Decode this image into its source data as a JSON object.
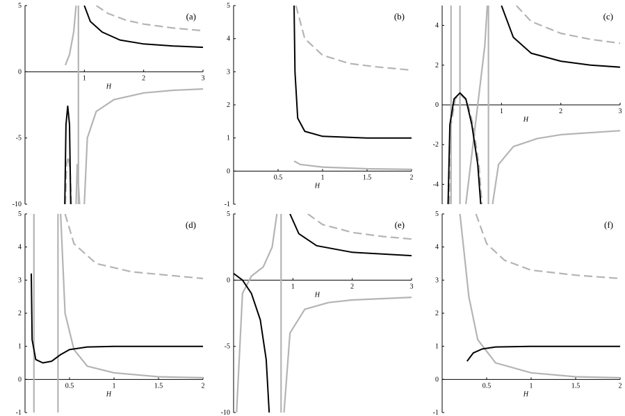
{
  "chart_data": [
    {
      "type": "line",
      "label": "(a)",
      "xlabel": "H",
      "xlim": [
        0,
        3
      ],
      "ylim": [
        -10,
        5
      ],
      "xticks": [
        1,
        2,
        3
      ],
      "yticks": [
        5,
        0,
        -5,
        -10
      ],
      "series": [
        {
          "color": "#b4b4b4",
          "dash": true,
          "x": [
            1.2,
            1.4,
            1.7,
            2,
            2.5,
            3
          ],
          "values": [
            5,
            4.4,
            3.9,
            3.6,
            3.3,
            3.1
          ]
        },
        {
          "color": "#000000",
          "dash": false,
          "x": [
            1.0,
            1.1,
            1.3,
            1.6,
            2,
            2.5,
            3
          ],
          "values": [
            5,
            3.8,
            3.0,
            2.4,
            2.1,
            1.95,
            1.85
          ]
        },
        {
          "color": "#b4b4b4",
          "dash": false,
          "x": [
            0.68,
            0.75,
            0.82,
            0.86
          ],
          "values": [
            0.5,
            1.3,
            3,
            5
          ]
        },
        {
          "color": "#b4b4b4",
          "dash": false,
          "x": [
            0.9,
            0.9
          ],
          "values": [
            5,
            -10
          ]
        },
        {
          "color": "#b4b4b4",
          "dash": false,
          "x": [
            1.0,
            1.05,
            1.2,
            1.5,
            2,
            2.5,
            3
          ],
          "values": [
            -10,
            -5,
            -3,
            -2.1,
            -1.6,
            -1.4,
            -1.3
          ]
        },
        {
          "color": "#b4b4b4",
          "dash": false,
          "x": [
            0.86,
            0.88,
            0.92
          ],
          "values": [
            -10,
            -7,
            -10
          ]
        },
        {
          "color": "#b4b4b4",
          "dash": true,
          "x": [
            0.68,
            0.7,
            0.73,
            0.76,
            0.78
          ],
          "values": [
            -10,
            -7,
            -6.4,
            -7.5,
            -10
          ]
        },
        {
          "color": "#000000",
          "dash": false,
          "x": [
            0.67,
            0.69,
            0.72,
            0.75,
            0.77
          ],
          "values": [
            -10,
            -4,
            -2.6,
            -4,
            -10
          ]
        }
      ]
    },
    {
      "type": "line",
      "label": "(b)",
      "xlabel": "H",
      "xlim": [
        0,
        2
      ],
      "ylim": [
        -1,
        5
      ],
      "xticks": [
        0.5,
        1,
        1.5,
        2
      ],
      "yticks": [
        -1,
        0,
        1,
        2,
        3,
        4,
        5
      ],
      "series": [
        {
          "color": "#b4b4b4",
          "dash": true,
          "x": [
            0.7,
            0.8,
            1,
            1.3,
            1.6,
            2
          ],
          "values": [
            5,
            4.0,
            3.5,
            3.25,
            3.15,
            3.05
          ]
        },
        {
          "color": "#b4b4b4",
          "dash": false,
          "x": [
            0.68,
            0.75,
            1,
            1.5,
            2
          ],
          "values": [
            0.3,
            0.2,
            0.12,
            0.07,
            0.05
          ]
        },
        {
          "color": "#000000",
          "dash": false,
          "x": [
            0.68,
            0.69,
            0.72,
            0.8,
            1,
            1.5,
            2
          ],
          "values": [
            5,
            3,
            1.6,
            1.2,
            1.05,
            1.0,
            1.0
          ]
        }
      ]
    },
    {
      "type": "line",
      "label": "(c)",
      "xlabel": "H",
      "xlim": [
        0,
        3
      ],
      "ylim": [
        -5,
        5
      ],
      "xticks": [
        1,
        2,
        3
      ],
      "yticks": [
        -4,
        -2,
        0,
        2,
        4
      ],
      "series": [
        {
          "color": "#b4b4b4",
          "dash": true,
          "x": [
            1.25,
            1.5,
            2,
            2.5,
            3
          ],
          "values": [
            5,
            4.2,
            3.6,
            3.3,
            3.1
          ]
        },
        {
          "color": "#b4b4b4",
          "dash": false,
          "x": [
            0.15,
            0.15
          ],
          "values": [
            5,
            -5
          ]
        },
        {
          "color": "#b4b4b4",
          "dash": false,
          "x": [
            0.3,
            0.3
          ],
          "values": [
            5,
            -5
          ]
        },
        {
          "color": "#b4b4b4",
          "dash": false,
          "x": [
            0.78,
            0.78
          ],
          "values": [
            5,
            -5
          ]
        },
        {
          "color": "#b4b4b4",
          "dash": false,
          "x": [
            0.4,
            0.6,
            0.72,
            0.76
          ],
          "values": [
            -5,
            0,
            3,
            5
          ]
        },
        {
          "color": "#b4b4b4",
          "dash": false,
          "x": [
            0.85,
            0.95,
            1.2,
            1.6,
            2,
            3
          ],
          "values": [
            -5,
            -3,
            -2.1,
            -1.7,
            -1.5,
            -1.3
          ]
        },
        {
          "color": "#b4b4b4",
          "dash": true,
          "x": [
            0.12,
            0.15,
            0.22,
            0.3,
            0.42,
            0.52,
            0.62,
            0.67
          ],
          "values": [
            -5,
            -1,
            0.3,
            0.55,
            0.2,
            -1,
            -3,
            -5
          ]
        },
        {
          "color": "#000000",
          "dash": false,
          "x": [
            0.1,
            0.13,
            0.2,
            0.3,
            0.4,
            0.5,
            0.6,
            0.65
          ],
          "values": [
            -5,
            -1,
            0.3,
            0.6,
            0.3,
            -1,
            -3,
            -5
          ]
        },
        {
          "color": "#000000",
          "dash": false,
          "x": [
            1.0,
            1.2,
            1.5,
            2,
            2.5,
            3
          ],
          "values": [
            5,
            3.4,
            2.6,
            2.2,
            2.0,
            1.9
          ]
        }
      ]
    },
    {
      "type": "line",
      "label": "(d)",
      "xlabel": "H",
      "xlim": [
        0,
        2
      ],
      "ylim": [
        -1,
        5
      ],
      "xticks": [
        0.5,
        1,
        1.5,
        2
      ],
      "yticks": [
        -1,
        0,
        1,
        2,
        3,
        4,
        5
      ],
      "series": [
        {
          "color": "#b4b4b4",
          "dash": true,
          "x": [
            0.45,
            0.55,
            0.8,
            1.2,
            2
          ],
          "values": [
            5,
            4.1,
            3.5,
            3.25,
            3.05
          ]
        },
        {
          "color": "#b4b4b4",
          "dash": false,
          "x": [
            0.1,
            0.1
          ],
          "values": [
            5,
            -1
          ]
        },
        {
          "color": "#b4b4b4",
          "dash": false,
          "x": [
            0.37,
            0.37
          ],
          "values": [
            5,
            -1
          ]
        },
        {
          "color": "#b4b4b4",
          "dash": false,
          "x": [
            0.4,
            0.45,
            0.55,
            0.7,
            1,
            1.5,
            2
          ],
          "values": [
            5,
            2,
            0.9,
            0.4,
            0.2,
            0.08,
            0.05
          ]
        },
        {
          "color": "#000000",
          "dash": false,
          "x": [
            0.07,
            0.08,
            0.12,
            0.2,
            0.3,
            0.4,
            0.5,
            0.7,
            1,
            2
          ],
          "values": [
            3.2,
            1.2,
            0.6,
            0.5,
            0.55,
            0.75,
            0.9,
            0.98,
            1,
            1
          ]
        }
      ]
    },
    {
      "type": "line",
      "label": "(e)",
      "xlabel": "H",
      "xlim": [
        0,
        3
      ],
      "ylim": [
        -10,
        5
      ],
      "xticks": [
        1,
        2,
        3
      ],
      "yticks": [
        5,
        0,
        -5,
        -10
      ],
      "series": [
        {
          "color": "#b4b4b4",
          "dash": true,
          "x": [
            1.25,
            1.5,
            2,
            2.5,
            3
          ],
          "values": [
            5,
            4.2,
            3.6,
            3.3,
            3.1
          ]
        },
        {
          "color": "#b4b4b4",
          "dash": false,
          "x": [
            0.8,
            0.8
          ],
          "values": [
            5,
            -10
          ]
        },
        {
          "color": "#b4b4b4",
          "dash": false,
          "x": [
            0.05,
            0.15,
            0.3,
            0.5,
            0.65,
            0.73
          ],
          "values": [
            -10,
            -1,
            0.3,
            1,
            2.5,
            5
          ]
        },
        {
          "color": "#b4b4b4",
          "dash": false,
          "x": [
            0.85,
            0.95,
            1.2,
            1.6,
            2,
            3
          ],
          "values": [
            -10,
            -4,
            -2.2,
            -1.7,
            -1.5,
            -1.3
          ]
        },
        {
          "color": "#000000",
          "dash": false,
          "x": [
            0.0,
            0.15,
            0.3,
            0.45,
            0.55,
            0.6
          ],
          "values": [
            0.5,
            0,
            -1,
            -3,
            -6,
            -10
          ]
        },
        {
          "color": "#000000",
          "dash": false,
          "x": [
            0.95,
            1.1,
            1.4,
            2,
            3
          ],
          "values": [
            5,
            3.5,
            2.6,
            2.1,
            1.85
          ]
        }
      ]
    },
    {
      "type": "line",
      "label": "(f)",
      "xlabel": "H",
      "xlim": [
        0,
        2
      ],
      "ylim": [
        -1,
        5
      ],
      "xticks": [
        0.5,
        1,
        1.5,
        2
      ],
      "yticks": [
        -1,
        0,
        1,
        2,
        3,
        4,
        5
      ],
      "series": [
        {
          "color": "#b4b4b4",
          "dash": true,
          "x": [
            0.38,
            0.5,
            0.7,
            1,
            1.5,
            2
          ],
          "values": [
            5,
            4.1,
            3.6,
            3.3,
            3.15,
            3.05
          ]
        },
        {
          "color": "#b4b4b4",
          "dash": false,
          "x": [
            0.2,
            0.3,
            0.4,
            0.6,
            1,
            1.5,
            2
          ],
          "values": [
            5,
            2.5,
            1.2,
            0.5,
            0.2,
            0.08,
            0.05
          ]
        },
        {
          "color": "#000000",
          "dash": false,
          "x": [
            0.28,
            0.35,
            0.45,
            0.6,
            1,
            2
          ],
          "values": [
            0.55,
            0.8,
            0.92,
            0.98,
            1,
            1
          ]
        }
      ]
    }
  ]
}
